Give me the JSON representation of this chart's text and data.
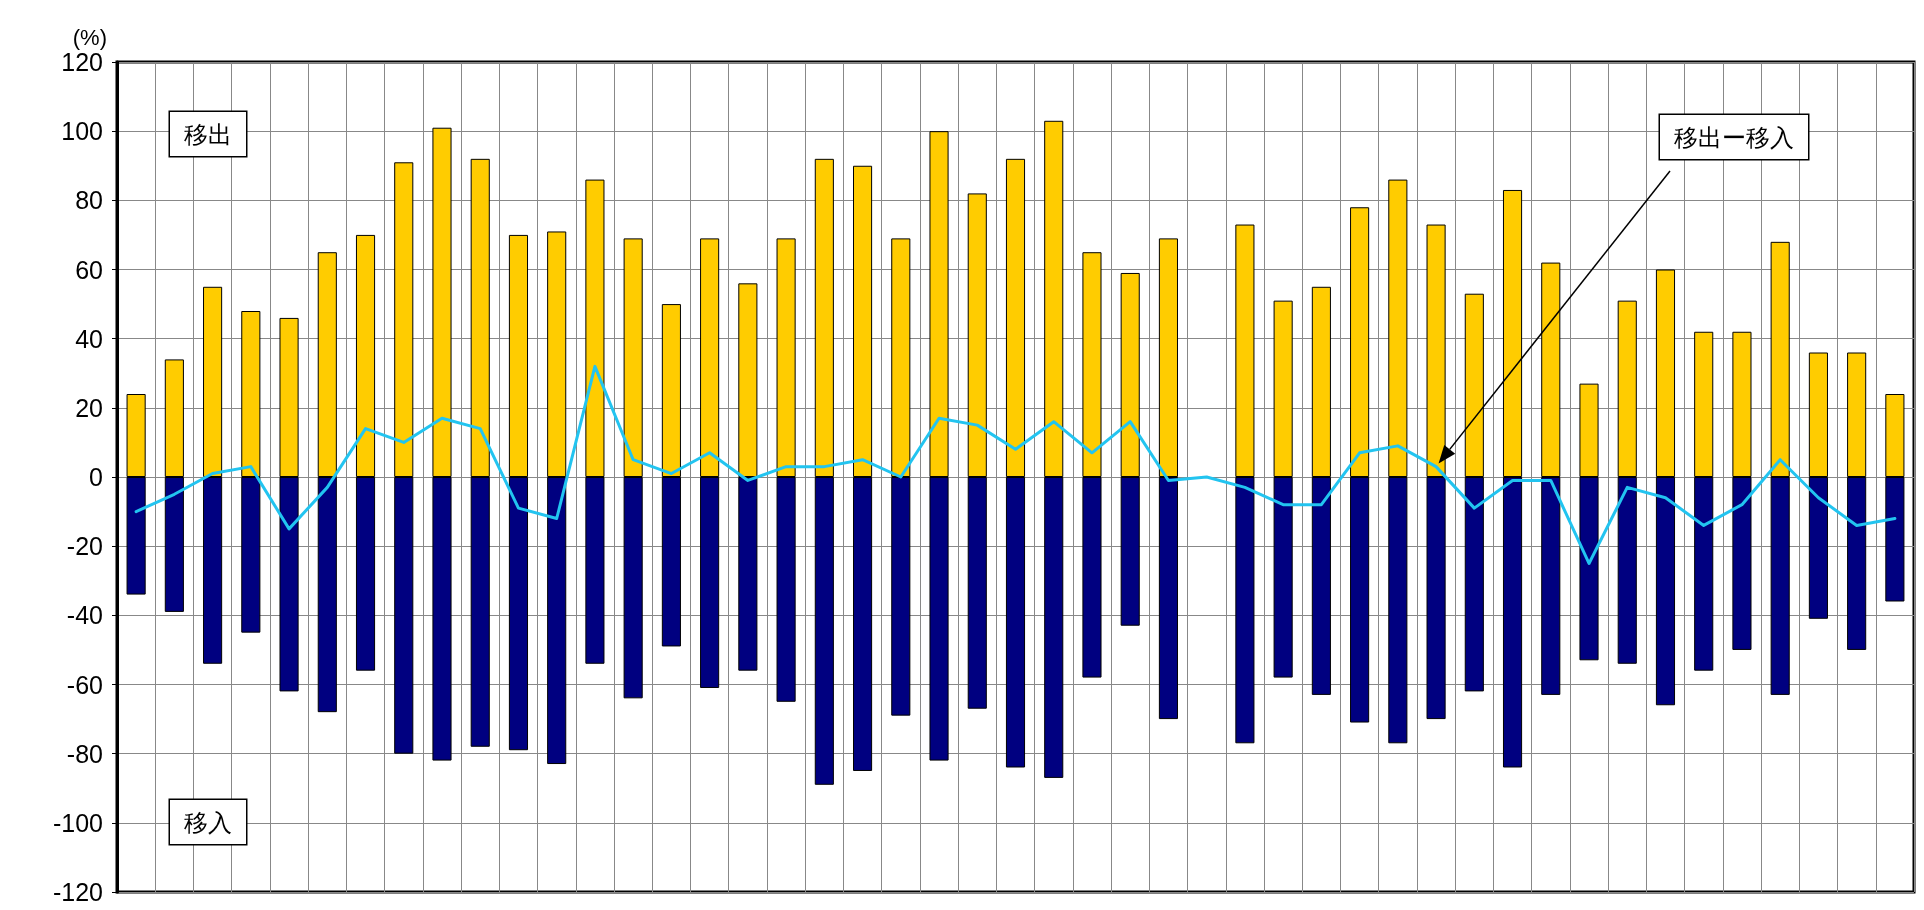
{
  "chart_data": {
    "type": "bar",
    "ylabel": "(%)",
    "stacked": true,
    "grid": true,
    "legend": false,
    "marker": "none",
    "line_style": "solid",
    "categories": [
      null,
      null,
      null,
      null,
      null,
      null,
      null,
      null,
      null,
      null,
      null,
      null,
      null,
      null,
      null,
      null,
      null,
      null,
      null,
      null,
      null,
      null,
      null,
      null,
      null,
      null,
      null,
      null,
      null,
      null,
      null,
      null,
      null,
      null,
      null,
      null,
      null,
      null,
      null,
      null,
      null,
      null,
      null,
      null,
      null,
      null,
      null
    ],
    "ylim": [
      -120,
      120
    ],
    "yticks": [
      -120,
      -100,
      -80,
      -60,
      -40,
      -20,
      0,
      20,
      40,
      60,
      80,
      100,
      120
    ],
    "series": [
      {
        "name": "移出",
        "color": "#ffcc00",
        "values": [
          24,
          34,
          55,
          48,
          46,
          65,
          70,
          91,
          101,
          92,
          70,
          71,
          86,
          69,
          50,
          69,
          56,
          69,
          92,
          90,
          69,
          100,
          82,
          92,
          103,
          65,
          59,
          69,
          null,
          73,
          51,
          55,
          78,
          86,
          73,
          53,
          83,
          62,
          27,
          51,
          60,
          42,
          42,
          68,
          36,
          36,
          24
        ]
      },
      {
        "name": "移入",
        "color": "#000080",
        "values": [
          -34,
          -39,
          -54,
          -45,
          -62,
          -68,
          -56,
          -80,
          -82,
          -78,
          -79,
          -83,
          -54,
          -64,
          -49,
          -61,
          -56,
          -65,
          -89,
          -85,
          -69,
          -82,
          -67,
          -84,
          -87,
          -58,
          -43,
          -70,
          null,
          -77,
          -58,
          -63,
          -71,
          -77,
          -70,
          -62,
          -84,
          -63,
          -53,
          -54,
          -66,
          -56,
          -50,
          -63,
          -41,
          -50,
          -36
        ]
      },
      {
        "name": "移出ー移入",
        "type": "line",
        "color": "#22c4f0",
        "values": [
          -10,
          -5,
          1,
          3,
          -15,
          -3,
          14,
          10,
          17,
          14,
          -9,
          -12,
          32,
          5,
          1,
          7,
          -1,
          3,
          3,
          5,
          0,
          17,
          15,
          8,
          16,
          7,
          16,
          -1,
          0,
          -3,
          -8,
          -8,
          7,
          9,
          3,
          -9,
          -1,
          -1,
          -25,
          -3,
          -6,
          -14,
          -8,
          5,
          -6,
          -14,
          -12
        ]
      }
    ]
  }
}
